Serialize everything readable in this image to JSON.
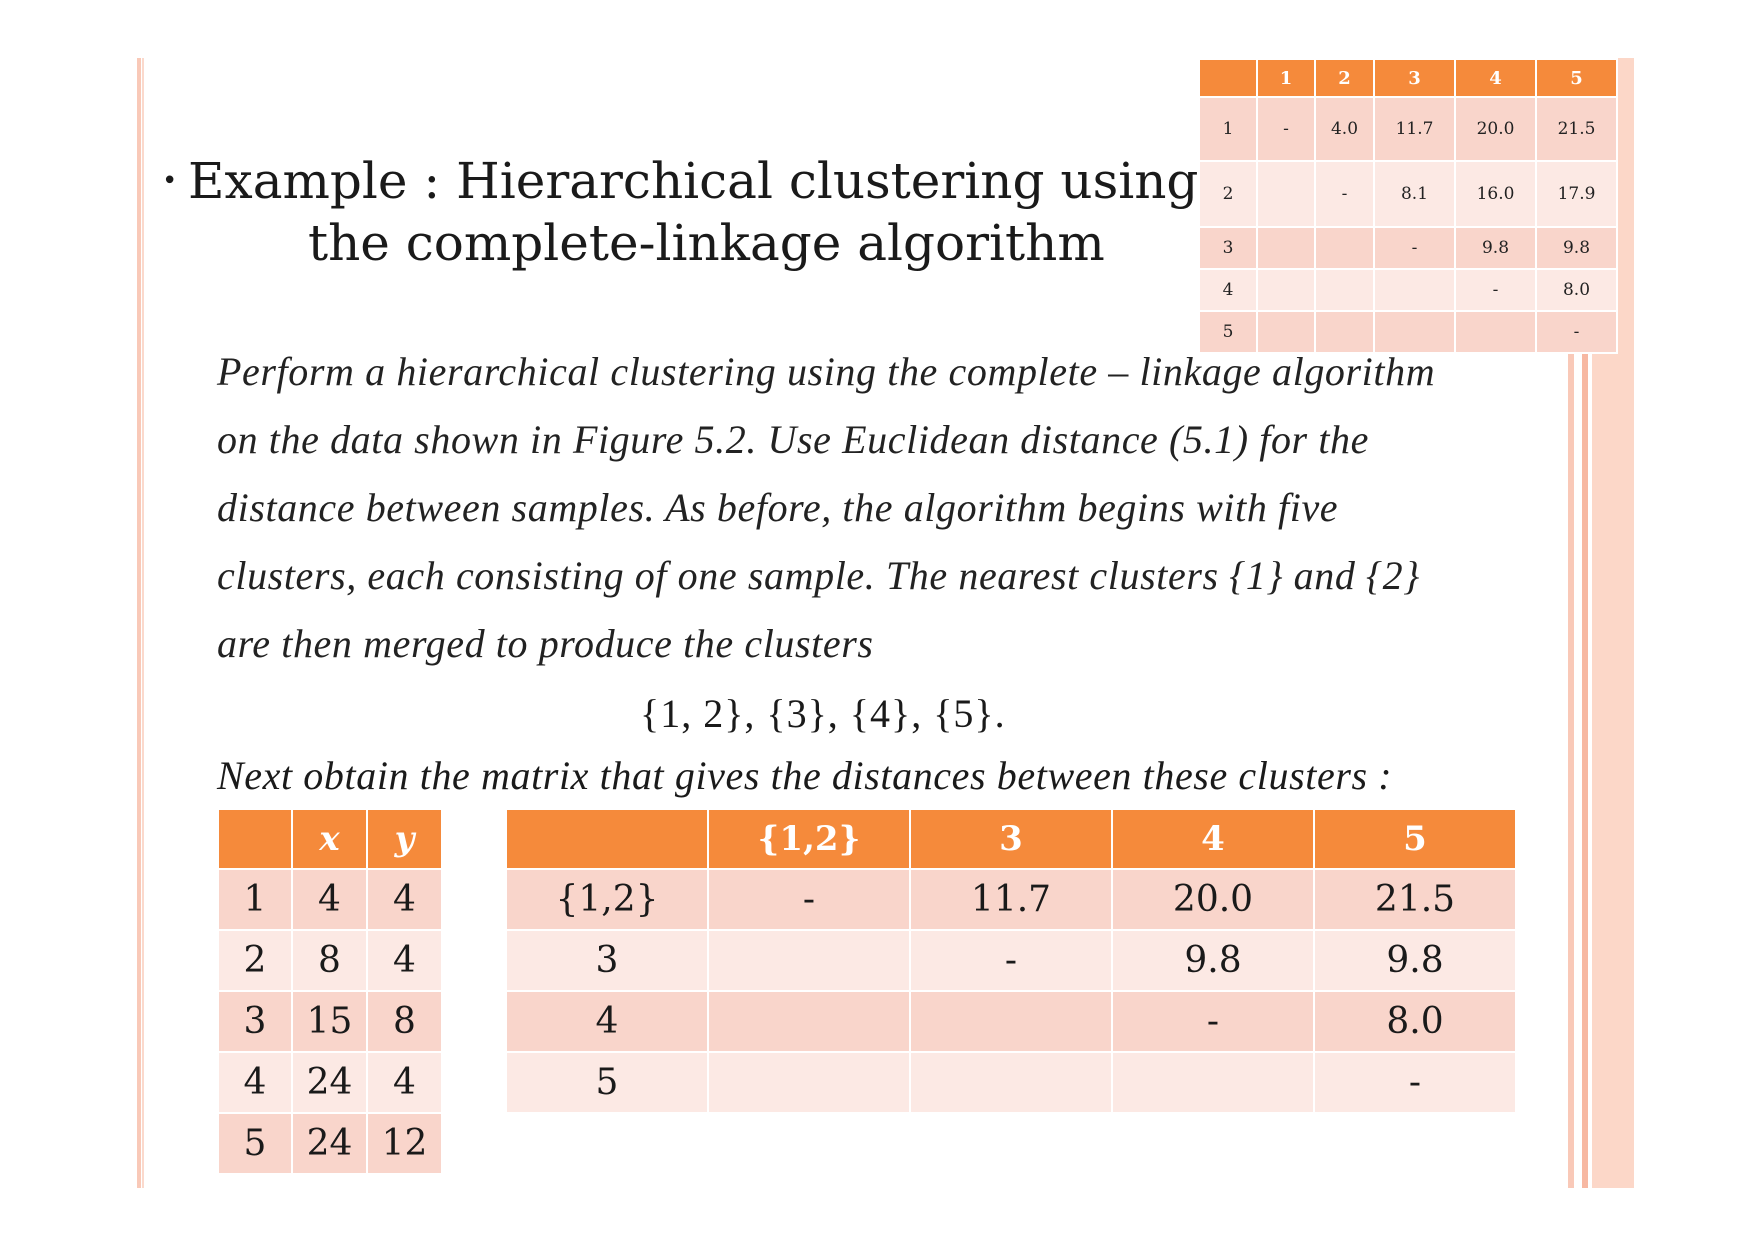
{
  "title": {
    "line1": "Example : Hierarchical clustering using",
    "line2": "the complete-linkage algorithm"
  },
  "body": {
    "lines": [
      "Perform a hierarchical clustering using the complete – linkage algorithm",
      "on the data shown in Figure 5.2. Use Euclidean distance (5.1) for the",
      "distance between samples. As before, the algorithm begins with five",
      "clusters, each consisting of one sample. The nearest clusters {1} and {2}",
      "are then merged to produce the clusters"
    ],
    "formula": "{1, 2}, {3}, {4}, {5}.",
    "next_line": "Next obtain the matrix that gives the distances between these clusters :"
  },
  "small_table": {
    "headers": [
      "",
      "1",
      "2",
      "3",
      "4",
      "5"
    ],
    "rows": [
      [
        "1",
        "-",
        "4.0",
        "11.7",
        "20.0",
        "21.5"
      ],
      [
        "2",
        "",
        "-",
        "8.1",
        "16.0",
        "17.9"
      ],
      [
        "3",
        "",
        "",
        "-",
        "9.8",
        "9.8"
      ],
      [
        "4",
        "",
        "",
        "",
        "-",
        "8.0"
      ],
      [
        "5",
        "",
        "",
        "",
        "",
        "-"
      ]
    ]
  },
  "xy_table": {
    "headers": [
      "",
      "x",
      "y"
    ],
    "rows": [
      [
        "1",
        "4",
        "4"
      ],
      [
        "2",
        "8",
        "4"
      ],
      [
        "3",
        "15",
        "8"
      ],
      [
        "4",
        "24",
        "4"
      ],
      [
        "5",
        "24",
        "12"
      ]
    ]
  },
  "dist_table": {
    "headers": [
      "",
      "{1,2}",
      "3",
      "4",
      "5"
    ],
    "rows": [
      [
        "{1,2}",
        "-",
        "11.7",
        "20.0",
        "21.5"
      ],
      [
        "3",
        "",
        "-",
        "9.8",
        "9.8"
      ],
      [
        "4",
        "",
        "",
        "-",
        "8.0"
      ],
      [
        "5",
        "",
        "",
        "",
        "-"
      ]
    ]
  },
  "colors": {
    "header": "#f58a3b",
    "row_dark": "#f9d5cb",
    "row_light": "#fce9e4",
    "frame": "#f7b8a2"
  }
}
